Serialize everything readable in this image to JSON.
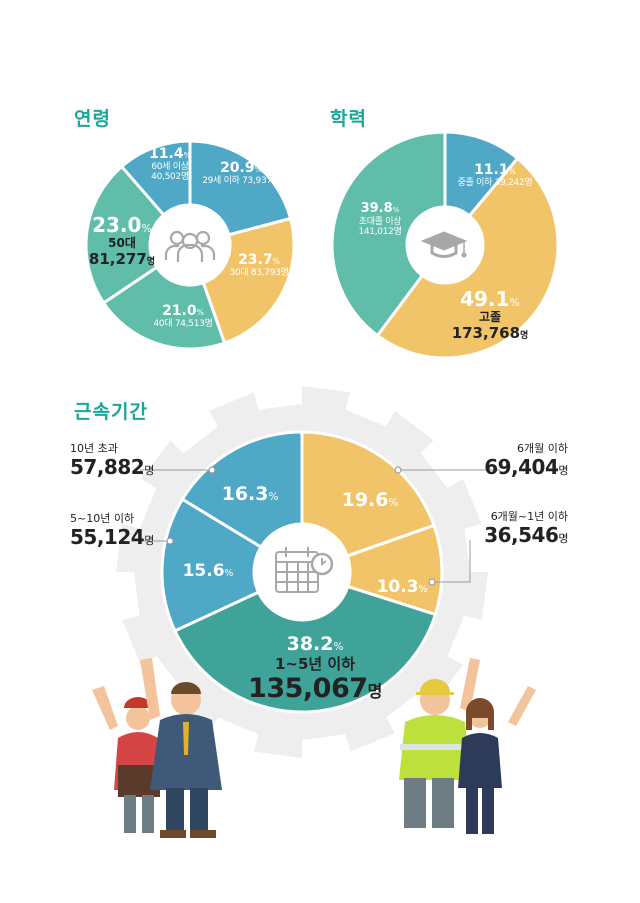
{
  "colors": {
    "teal": "#1aa79a",
    "blue": "#4ea8c6",
    "green_teal": "#5fbdaa",
    "yellow": "#f2c46a",
    "gear": "#eeeeee",
    "hub_icon": "#a8a8a8"
  },
  "icons": [
    "people-icon",
    "graduation-cap-icon",
    "calendar-icon"
  ],
  "chart_data": [
    {
      "type": "pie",
      "title": "연령",
      "slices": [
        {
          "pct": "20.9",
          "value": 20.9,
          "label": "29세 이하",
          "count": "73,937",
          "unit": "명",
          "color": "#4ea8c6"
        },
        {
          "pct": "23.7",
          "value": 23.7,
          "label": "30대",
          "count": "83,793",
          "unit": "명",
          "color": "#f2c46a"
        },
        {
          "pct": "21.0",
          "value": 21.0,
          "label": "40대",
          "count": "74,513",
          "unit": "명",
          "color": "#5fbdaa"
        },
        {
          "pct": "23.0",
          "value": 23.0,
          "label": "50대",
          "count": "81,277",
          "unit": "명",
          "color": "#5fbdaa"
        },
        {
          "pct": "11.4",
          "value": 11.4,
          "label": "60세 이상",
          "count": "40,502",
          "unit": "명",
          "color": "#4ea8c6"
        }
      ]
    },
    {
      "type": "pie",
      "title": "학력",
      "slices": [
        {
          "pct": "11.1",
          "value": 11.1,
          "label": "중졸 이하",
          "count": "39,242",
          "unit": "명",
          "color": "#4ea8c6"
        },
        {
          "pct": "49.1",
          "value": 49.1,
          "label": "고졸",
          "count": "173,768",
          "unit": "명",
          "color": "#f2c46a"
        },
        {
          "pct": "39.8",
          "value": 39.8,
          "label": "초대졸 이상",
          "count": "141,012",
          "unit": "명",
          "color": "#5fbdaa"
        }
      ]
    },
    {
      "type": "pie",
      "title": "근속기간",
      "slices": [
        {
          "pct": "19.6",
          "value": 19.6,
          "label": "6개월 이하",
          "count": "69,404",
          "unit": "명",
          "color": "#f2c46a"
        },
        {
          "pct": "10.3",
          "value": 10.3,
          "label": "6개월~1년 이하",
          "count": "36,546",
          "unit": "명",
          "color": "#f2c46a"
        },
        {
          "pct": "38.2",
          "value": 38.2,
          "label": "1~5년 이하",
          "count": "135,067",
          "unit": "명",
          "color": "#3fa39a"
        },
        {
          "pct": "15.6",
          "value": 15.6,
          "label": "5~10년 이하",
          "count": "55,124",
          "unit": "명",
          "color": "#4ea8c6"
        },
        {
          "pct": "16.3",
          "value": 16.3,
          "label": "10년 초과",
          "count": "57,882",
          "unit": "명",
          "color": "#4ea8c6"
        }
      ]
    }
  ]
}
